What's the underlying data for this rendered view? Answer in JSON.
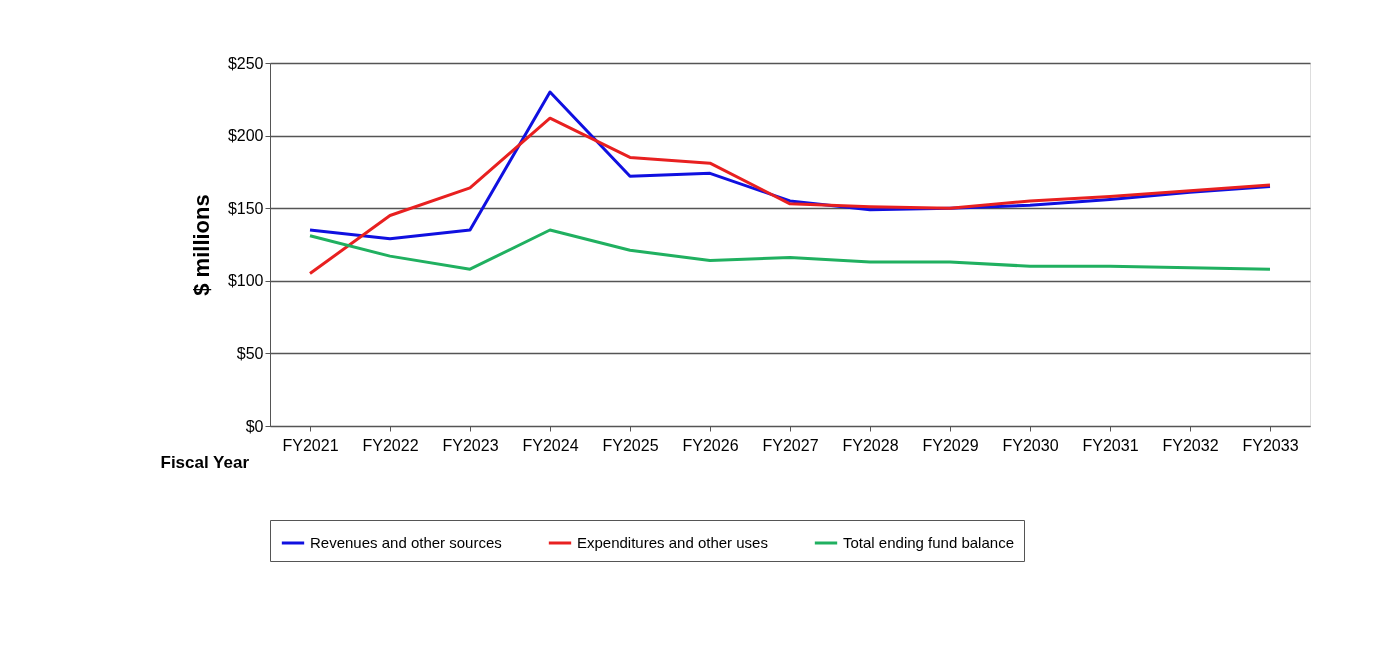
{
  "chart_data": {
    "type": "line",
    "xlabel": "Fiscal Year",
    "ylabel": "$ millions",
    "categories": [
      "FY2021",
      "FY2022",
      "FY2023",
      "FY2024",
      "FY2025",
      "FY2026",
      "FY2027",
      "FY2028",
      "FY2029",
      "FY2030",
      "FY2031",
      "FY2032",
      "FY2033"
    ],
    "series": [
      {
        "name": "Revenues and other sources",
        "color": "#1010e0",
        "values": [
          135,
          129,
          135,
          230,
          172,
          174,
          155,
          149,
          150,
          152,
          156,
          161,
          165
        ]
      },
      {
        "name": "Expenditures and other uses",
        "color": "#e82020",
        "values": [
          105,
          145,
          164,
          212,
          185,
          181,
          153,
          151,
          150,
          155,
          158,
          162,
          166
        ]
      },
      {
        "name": "Total ending fund balance",
        "color": "#20b060",
        "values": [
          131,
          117,
          108,
          135,
          121,
          114,
          116,
          113,
          113,
          110,
          110,
          109,
          108
        ]
      }
    ],
    "ylim": [
      0,
      250
    ],
    "yticks": [
      {
        "value": 0,
        "label": "$0"
      },
      {
        "value": 50,
        "label": "$50"
      },
      {
        "value": 100,
        "label": "$100"
      },
      {
        "value": 150,
        "label": "$150"
      },
      {
        "value": 200,
        "label": "$200"
      },
      {
        "value": 250,
        "label": "$250"
      }
    ],
    "grid": "y",
    "legend": "bottom",
    "marker": "none",
    "line_style": "solid"
  }
}
